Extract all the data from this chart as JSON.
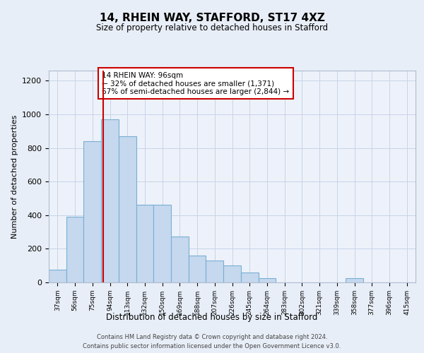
{
  "title": "14, RHEIN WAY, STAFFORD, ST17 4XZ",
  "subtitle": "Size of property relative to detached houses in Stafford",
  "xlabel": "Distribution of detached houses by size in Stafford",
  "ylabel": "Number of detached properties",
  "categories": [
    "37sqm",
    "56sqm",
    "75sqm",
    "94sqm",
    "113sqm",
    "132sqm",
    "150sqm",
    "169sqm",
    "188sqm",
    "207sqm",
    "226sqm",
    "245sqm",
    "264sqm",
    "283sqm",
    "302sqm",
    "321sqm",
    "339sqm",
    "358sqm",
    "377sqm",
    "396sqm",
    "415sqm"
  ],
  "values": [
    75,
    390,
    840,
    970,
    870,
    460,
    460,
    275,
    160,
    130,
    100,
    60,
    25,
    0,
    0,
    0,
    0,
    25,
    0,
    0,
    0
  ],
  "bar_color": "#c5d8ee",
  "bar_edge_color": "#7aafd4",
  "highlight_index": 3,
  "highlight_line_color": "#cc0000",
  "annotation_text": "14 RHEIN WAY: 96sqm\n← 32% of detached houses are smaller (1,371)\n67% of semi-detached houses are larger (2,844) →",
  "annotation_box_color": "#ffffff",
  "annotation_box_edge": "#cc0000",
  "ylim": [
    0,
    1260
  ],
  "yticks": [
    0,
    200,
    400,
    600,
    800,
    1000,
    1200
  ],
  "footer_line1": "Contains HM Land Registry data © Crown copyright and database right 2024.",
  "footer_line2": "Contains public sector information licensed under the Open Government Licence v3.0.",
  "background_color": "#e8eef7",
  "plot_bg_color": "#edf2fa",
  "grid_color": "#c8d4e8"
}
